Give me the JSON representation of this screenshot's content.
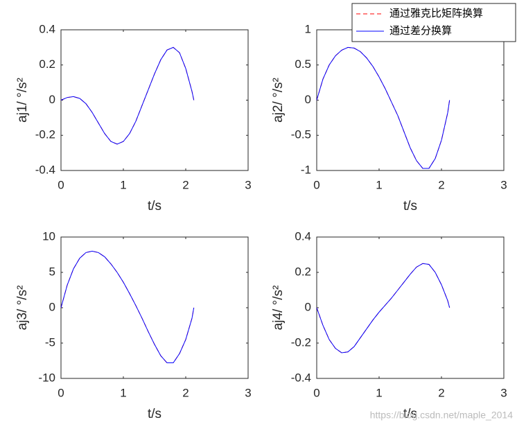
{
  "chart_data": [
    {
      "type": "line",
      "ylabel": "aj1/ °/s²",
      "xlabel": "t/s",
      "xlim": [
        0,
        3
      ],
      "xticks": [
        0,
        1,
        2,
        3
      ],
      "ylim": [
        -0.4,
        0.4
      ],
      "yticks": [
        -0.4,
        -0.2,
        0,
        0.2,
        0.4
      ],
      "x": [
        0,
        0.1,
        0.2,
        0.3,
        0.4,
        0.5,
        0.6,
        0.7,
        0.8,
        0.9,
        1.0,
        1.1,
        1.2,
        1.3,
        1.4,
        1.5,
        1.6,
        1.7,
        1.8,
        1.9,
        2.0,
        2.1,
        2.13
      ],
      "series": [
        {
          "color": "#ff0000",
          "linestyle": "dashed",
          "values": [
            0,
            0.015,
            0.02,
            0.01,
            -0.02,
            -0.07,
            -0.13,
            -0.19,
            -0.235,
            -0.25,
            -0.235,
            -0.19,
            -0.12,
            -0.03,
            0.06,
            0.15,
            0.23,
            0.285,
            0.3,
            0.27,
            0.18,
            0.05,
            0
          ]
        },
        {
          "color": "#0000ff",
          "linestyle": "solid",
          "values": [
            0,
            0.015,
            0.02,
            0.01,
            -0.02,
            -0.07,
            -0.13,
            -0.19,
            -0.235,
            -0.25,
            -0.235,
            -0.19,
            -0.12,
            -0.03,
            0.06,
            0.15,
            0.23,
            0.285,
            0.3,
            0.27,
            0.18,
            0.05,
            0
          ]
        }
      ]
    },
    {
      "type": "line",
      "ylabel": "aj2/ °/s²",
      "xlabel": "t/s",
      "xlim": [
        0,
        3
      ],
      "xticks": [
        0,
        1,
        2,
        3
      ],
      "ylim": [
        -1,
        1
      ],
      "yticks": [
        -1,
        -0.5,
        0,
        0.5,
        1
      ],
      "legend": "north-east outside",
      "x": [
        0,
        0.1,
        0.2,
        0.3,
        0.4,
        0.5,
        0.6,
        0.7,
        0.8,
        0.9,
        1.0,
        1.1,
        1.2,
        1.3,
        1.4,
        1.5,
        1.6,
        1.7,
        1.8,
        1.9,
        2.0,
        2.1,
        2.13
      ],
      "series": [
        {
          "name": "通过雅克比矩阵换算",
          "color": "#ff0000",
          "linestyle": "dashed",
          "values": [
            0,
            0.3,
            0.5,
            0.63,
            0.71,
            0.75,
            0.74,
            0.69,
            0.6,
            0.48,
            0.33,
            0.16,
            -0.03,
            -0.22,
            -0.45,
            -0.68,
            -0.86,
            -0.97,
            -0.97,
            -0.83,
            -0.57,
            -0.18,
            0
          ]
        },
        {
          "name": "通过差分换算",
          "color": "#0000ff",
          "linestyle": "solid",
          "values": [
            0,
            0.3,
            0.5,
            0.63,
            0.71,
            0.75,
            0.74,
            0.69,
            0.6,
            0.48,
            0.33,
            0.16,
            -0.03,
            -0.22,
            -0.45,
            -0.68,
            -0.86,
            -0.97,
            -0.97,
            -0.83,
            -0.57,
            -0.18,
            0
          ]
        }
      ]
    },
    {
      "type": "line",
      "ylabel": "aj3/ °/s²",
      "xlabel": "t/s",
      "xlim": [
        0,
        3
      ],
      "xticks": [
        0,
        1,
        2,
        3
      ],
      "ylim": [
        -10,
        10
      ],
      "yticks": [
        -10,
        -5,
        0,
        5,
        10
      ],
      "x": [
        0,
        0.1,
        0.2,
        0.3,
        0.4,
        0.5,
        0.6,
        0.7,
        0.8,
        0.9,
        1.0,
        1.1,
        1.2,
        1.3,
        1.4,
        1.5,
        1.6,
        1.7,
        1.8,
        1.9,
        2.0,
        2.1,
        2.13
      ],
      "series": [
        {
          "color": "#ff0000",
          "linestyle": "dashed",
          "values": [
            0,
            3.2,
            5.5,
            7,
            7.8,
            8,
            7.8,
            7.2,
            6.2,
            5,
            3.6,
            2,
            0.3,
            -1.5,
            -3.4,
            -5.2,
            -6.8,
            -7.8,
            -7.8,
            -6.5,
            -4.5,
            -1.5,
            0
          ]
        },
        {
          "color": "#0000ff",
          "linestyle": "solid",
          "values": [
            0,
            3.2,
            5.5,
            7,
            7.8,
            8,
            7.8,
            7.2,
            6.2,
            5,
            3.6,
            2,
            0.3,
            -1.5,
            -3.4,
            -5.2,
            -6.8,
            -7.8,
            -7.8,
            -6.5,
            -4.5,
            -1.5,
            0
          ]
        }
      ]
    },
    {
      "type": "line",
      "ylabel": "aj4/ °/s²",
      "xlabel": "t/s",
      "xlim": [
        0,
        3
      ],
      "xticks": [
        0,
        1,
        2,
        3
      ],
      "ylim": [
        -0.4,
        0.4
      ],
      "yticks": [
        -0.4,
        -0.2,
        0,
        0.2,
        0.4
      ],
      "x": [
        0,
        0.1,
        0.2,
        0.3,
        0.4,
        0.5,
        0.6,
        0.7,
        0.8,
        0.9,
        1.0,
        1.1,
        1.2,
        1.3,
        1.4,
        1.5,
        1.6,
        1.7,
        1.8,
        1.9,
        2.0,
        2.1,
        2.13
      ],
      "series": [
        {
          "color": "#ff0000",
          "linestyle": "dashed",
          "values": [
            0,
            -0.1,
            -0.18,
            -0.23,
            -0.255,
            -0.25,
            -0.22,
            -0.17,
            -0.12,
            -0.07,
            -0.025,
            0.015,
            0.055,
            0.1,
            0.145,
            0.19,
            0.23,
            0.25,
            0.245,
            0.2,
            0.13,
            0.04,
            0
          ]
        },
        {
          "color": "#0000ff",
          "linestyle": "solid",
          "values": [
            0,
            -0.1,
            -0.18,
            -0.23,
            -0.255,
            -0.25,
            -0.22,
            -0.17,
            -0.12,
            -0.07,
            -0.025,
            0.015,
            0.055,
            0.1,
            0.145,
            0.19,
            0.23,
            0.25,
            0.245,
            0.2,
            0.13,
            0.04,
            0
          ]
        }
      ]
    }
  ],
  "watermark": "https://blog.csdn.net/maple_2014"
}
